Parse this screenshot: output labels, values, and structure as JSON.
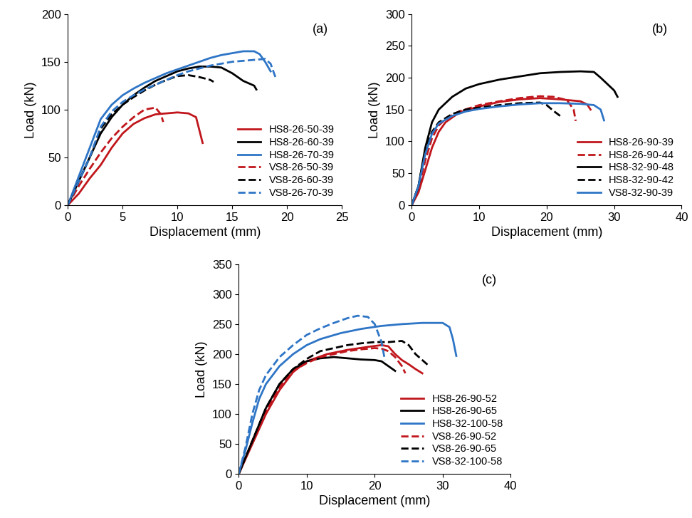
{
  "chart_data": [
    {
      "type": "line",
      "annotations": [
        "(a)"
      ],
      "x_label": "Displacement (mm)",
      "y_label": "Load (kN)",
      "xlim": [
        0,
        25
      ],
      "xticks": [
        0,
        5,
        10,
        15,
        20,
        25
      ],
      "ylim": [
        0,
        200
      ],
      "yticks": [
        0,
        50,
        100,
        150,
        200
      ],
      "grid": false,
      "legend": "lower right",
      "series": [
        {
          "name": "HS8-26-50-39",
          "color": "#c0161c",
          "line_style": "solid",
          "x": [
            0,
            1,
            2,
            3,
            4,
            5,
            6,
            7,
            8,
            9,
            10,
            11,
            11.7,
            12.3
          ],
          "values": [
            0,
            12,
            28,
            42,
            60,
            75,
            85,
            91,
            95,
            96,
            97,
            96,
            92,
            65
          ]
        },
        {
          "name": "HS8-26-60-39",
          "color": "#000000",
          "line_style": "solid",
          "x": [
            0,
            1,
            2,
            3,
            4,
            5,
            6,
            7,
            8,
            9,
            10,
            11,
            12,
            13,
            14,
            15,
            16,
            17,
            17.2
          ],
          "values": [
            0,
            25,
            50,
            75,
            92,
            105,
            115,
            123,
            130,
            135,
            140,
            143,
            145,
            145,
            144,
            138,
            130,
            125,
            121
          ]
        },
        {
          "name": "HS8-26-70-39",
          "color": "#2e75c6",
          "line_style": "solid",
          "x": [
            0,
            1,
            2,
            3,
            4,
            5,
            6,
            7,
            8,
            9,
            10,
            11,
            12,
            13,
            14,
            15,
            16,
            17,
            17.5,
            18,
            18.5
          ],
          "values": [
            0,
            30,
            60,
            90,
            105,
            115,
            122,
            128,
            133,
            138,
            142,
            146,
            150,
            154,
            157,
            159,
            161,
            161,
            158,
            150,
            140
          ]
        },
        {
          "name": "VS8-26-50-39",
          "color": "#c0161c",
          "line_style": "dashed",
          "x": [
            0,
            1,
            2,
            3,
            4,
            5,
            6,
            7,
            8,
            8.5,
            8.7
          ],
          "values": [
            0,
            20,
            38,
            55,
            70,
            82,
            92,
            100,
            102,
            95,
            87
          ]
        },
        {
          "name": "VS8-26-60-39",
          "color": "#000000",
          "line_style": "dashed",
          "x": [
            0,
            1,
            2,
            3,
            4,
            5,
            6,
            7,
            8,
            9,
            10,
            11,
            12,
            13,
            13.3
          ],
          "values": [
            0,
            25,
            50,
            80,
            95,
            105,
            113,
            120,
            126,
            131,
            135,
            136,
            134,
            131,
            129
          ]
        },
        {
          "name": "VS8-26-70-39",
          "color": "#2e75c6",
          "line_style": "dashed",
          "x": [
            0,
            1,
            2,
            3,
            4,
            5,
            6,
            7,
            8,
            9,
            10,
            11,
            12,
            13,
            14,
            15,
            16,
            17,
            18,
            18.5,
            19
          ],
          "values": [
            0,
            25,
            50,
            82,
            98,
            108,
            115,
            121,
            126,
            131,
            136,
            140,
            143,
            146,
            148,
            150,
            151,
            152,
            153,
            148,
            132
          ]
        }
      ]
    },
    {
      "type": "line",
      "annotations": [
        "(b)"
      ],
      "x_label": "Displacement (mm)",
      "y_label": "Load (kN)",
      "xlim": [
        0,
        40
      ],
      "xticks": [
        0,
        10,
        20,
        30,
        40
      ],
      "ylim": [
        0,
        300
      ],
      "yticks": [
        0,
        50,
        100,
        150,
        200,
        250,
        300
      ],
      "grid": false,
      "legend": "lower right",
      "series": [
        {
          "name": "HS8-26-90-39",
          "color": "#c0161c",
          "line_style": "solid",
          "x": [
            0,
            1,
            2,
            3,
            4,
            5,
            7,
            10,
            13,
            16,
            19,
            22,
            25,
            26,
            26.5
          ],
          "values": [
            0,
            20,
            55,
            90,
            115,
            130,
            145,
            155,
            162,
            166,
            168,
            166,
            163,
            158,
            150
          ]
        },
        {
          "name": "HS8-26-90-44",
          "color": "#c0161c",
          "line_style": "dashed",
          "x": [
            0,
            1,
            2,
            3,
            4,
            5,
            7,
            10,
            13,
            16,
            19,
            21,
            23,
            24,
            24.3
          ],
          "values": [
            0,
            25,
            70,
            105,
            125,
            135,
            147,
            157,
            163,
            168,
            171,
            170,
            165,
            150,
            132
          ]
        },
        {
          "name": "HS8-32-90-48",
          "color": "#000000",
          "line_style": "solid",
          "x": [
            0,
            1,
            2,
            3,
            4,
            6,
            8,
            10,
            13,
            16,
            19,
            22,
            25,
            27,
            28,
            29,
            30,
            30.5
          ],
          "values": [
            0,
            30,
            90,
            130,
            150,
            170,
            183,
            190,
            197,
            202,
            207,
            209,
            210,
            209,
            200,
            190,
            180,
            170
          ]
        },
        {
          "name": "HS8-32-90-42",
          "color": "#000000",
          "line_style": "dashed",
          "x": [
            0,
            1,
            2,
            3,
            4,
            6,
            8,
            10,
            13,
            16,
            19,
            20,
            21,
            22
          ],
          "values": [
            0,
            30,
            85,
            115,
            130,
            143,
            150,
            153,
            157,
            160,
            161,
            157,
            148,
            140
          ]
        },
        {
          "name": "VS8-32-90-39",
          "color": "#2e75c6",
          "line_style": "solid",
          "x": [
            0,
            1,
            2,
            3,
            4,
            6,
            8,
            10,
            13,
            16,
            19,
            22,
            25,
            27,
            28,
            28.5
          ],
          "values": [
            0,
            30,
            80,
            112,
            128,
            140,
            147,
            151,
            155,
            158,
            160,
            160,
            159,
            157,
            150,
            133
          ]
        }
      ]
    },
    {
      "type": "line",
      "annotations": [
        "(c)"
      ],
      "x_label": "Displacement (mm)",
      "y_label": "Load (kN)",
      "xlim": [
        0,
        40
      ],
      "xticks": [
        0,
        10,
        20,
        30,
        40
      ],
      "ylim": [
        0,
        350
      ],
      "yticks": [
        0,
        50,
        100,
        150,
        200,
        250,
        300,
        350
      ],
      "grid": false,
      "legend": "lower right",
      "series": [
        {
          "name": "HS8-26-90-52",
          "color": "#c0161c",
          "line_style": "solid",
          "x": [
            0,
            2,
            4,
            6,
            8,
            10,
            13,
            16,
            19,
            21,
            22,
            23,
            24,
            25,
            26,
            27
          ],
          "values": [
            0,
            50,
            100,
            140,
            170,
            188,
            200,
            207,
            212,
            215,
            213,
            200,
            190,
            183,
            175,
            168
          ]
        },
        {
          "name": "HS8-26-90-65",
          "color": "#000000",
          "line_style": "solid",
          "x": [
            0,
            2,
            4,
            6,
            8,
            10,
            12,
            14,
            16,
            18,
            20,
            21,
            22,
            23
          ],
          "values": [
            0,
            55,
            110,
            150,
            175,
            188,
            193,
            195,
            193,
            191,
            190,
            188,
            180,
            172
          ]
        },
        {
          "name": "HS8-32-100-58",
          "color": "#2e75c6",
          "line_style": "solid",
          "x": [
            0,
            1,
            2,
            3,
            4,
            6,
            8,
            10,
            12,
            15,
            18,
            21,
            24,
            27,
            30,
            31,
            31.5,
            32
          ],
          "values": [
            0,
            40,
            85,
            125,
            150,
            180,
            200,
            215,
            225,
            235,
            242,
            247,
            250,
            252,
            252,
            245,
            225,
            197
          ]
        },
        {
          "name": "VS8-26-90-52",
          "color": "#c0161c",
          "line_style": "dashed",
          "x": [
            0,
            2,
            4,
            6,
            8,
            10,
            12,
            14,
            16,
            18,
            20,
            21,
            22,
            23,
            24,
            24.5
          ],
          "values": [
            0,
            55,
            105,
            145,
            172,
            185,
            195,
            200,
            205,
            208,
            210,
            209,
            205,
            195,
            180,
            168
          ]
        },
        {
          "name": "VS8-26-90-65",
          "color": "#000000",
          "line_style": "dashed",
          "x": [
            0,
            2,
            4,
            6,
            8,
            10,
            12,
            14,
            16,
            18,
            20,
            22,
            24,
            25,
            26,
            27,
            28
          ],
          "values": [
            0,
            55,
            110,
            150,
            175,
            192,
            205,
            210,
            215,
            218,
            220,
            220,
            222,
            215,
            200,
            190,
            180
          ]
        },
        {
          "name": "VS8-32-100-58",
          "color": "#2e75c6",
          "line_style": "dashed",
          "x": [
            0,
            1,
            2,
            3,
            4,
            6,
            8,
            10,
            12,
            14,
            16,
            17.5,
            19,
            20,
            21,
            21.5
          ],
          "values": [
            0,
            45,
            100,
            140,
            165,
            195,
            215,
            232,
            243,
            252,
            260,
            264,
            262,
            250,
            220,
            190
          ]
        }
      ]
    }
  ]
}
